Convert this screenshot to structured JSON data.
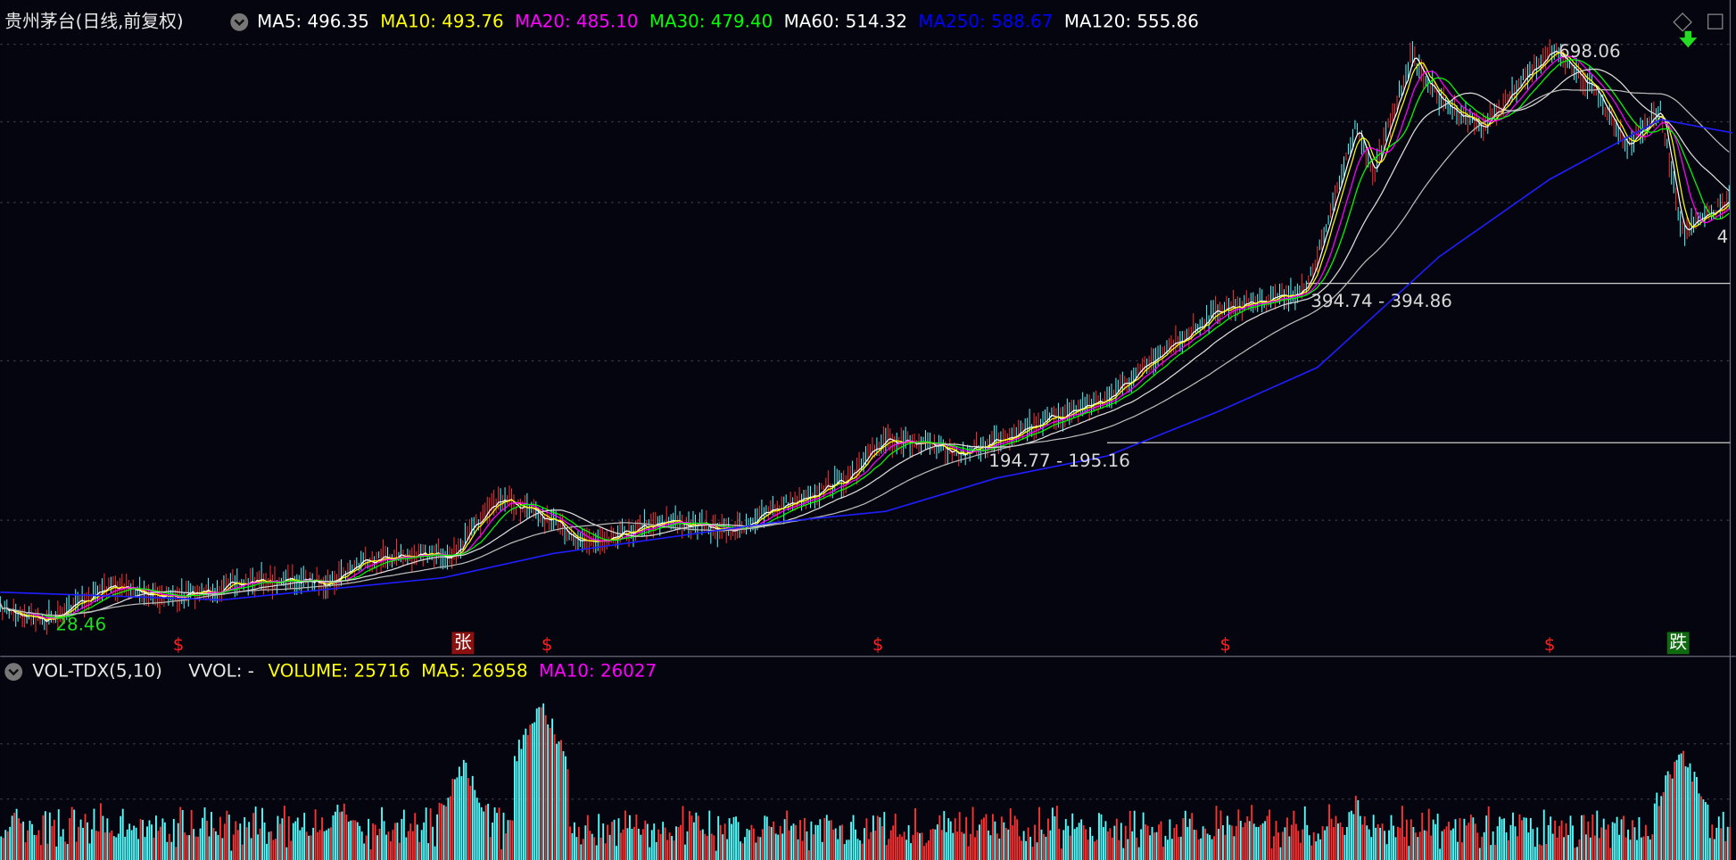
{
  "header": {
    "title": "贵州茅台(日线,前复权)",
    "indicators": [
      {
        "text": "MA5: 496.35",
        "color": "#ffffff"
      },
      {
        "text": "MA10: 493.76",
        "color": "#ffff00"
      },
      {
        "text": "MA20: 485.10",
        "color": "#ff00ff"
      },
      {
        "text": "MA30: 479.40",
        "color": "#00ff00"
      },
      {
        "text": "MA60: 514.32",
        "color": "#ffffff"
      },
      {
        "text": "MA250: 588.67",
        "color": "#0000ff"
      },
      {
        "text": "MA120: 555.86",
        "color": "#ffffff"
      }
    ]
  },
  "annotations": {
    "high": "698.06",
    "level_upper": "394.74 - 394.86",
    "level_lower": "194.77 - 195.16",
    "low": "28.46",
    "right_edge": "4"
  },
  "markers": {
    "dollar": "$",
    "rise": "张",
    "fall": "跌"
  },
  "volume_panel": {
    "name": "VOL-TDX(5,10)",
    "vvol": "VVOL: -",
    "indicators": [
      {
        "text": "VOLUME: 25716",
        "color": "#ffff00"
      },
      {
        "text": "MA5: 26958",
        "color": "#ffff00"
      },
      {
        "text": "MA10: 26027",
        "color": "#ff00ff"
      }
    ]
  }
}
